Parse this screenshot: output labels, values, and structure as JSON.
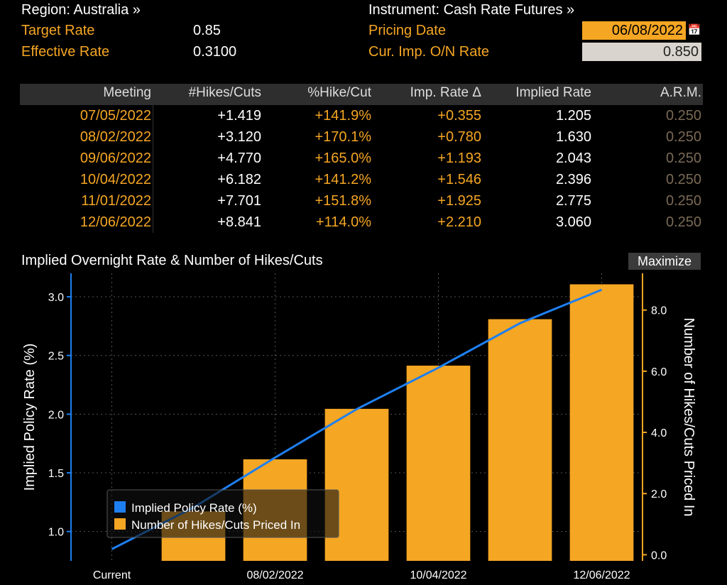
{
  "header": {
    "region": "Region: Australia »",
    "instrument": "Instrument: Cash Rate Futures »",
    "target_rate_label": "Target Rate",
    "target_rate_value": "0.85",
    "effective_rate_label": "Effective Rate",
    "effective_rate_value": "0.3100",
    "pricing_date_label": "Pricing Date",
    "pricing_date_value": "06/08/2022",
    "cur_imp_label": "Cur. Imp. O/N Rate",
    "cur_imp_value": "0.850",
    "calendar_icon": "calendar-icon"
  },
  "table": {
    "headers": [
      "Meeting",
      "#Hikes/Cuts",
      "%Hike/Cut",
      "Imp. Rate Δ",
      "Implied Rate",
      "A.R.M."
    ],
    "rows": [
      [
        "07/05/2022",
        "+1.419",
        "+141.9%",
        "+0.355",
        "1.205",
        "0.250"
      ],
      [
        "08/02/2022",
        "+3.120",
        "+170.1%",
        "+0.780",
        "1.630",
        "0.250"
      ],
      [
        "09/06/2022",
        "+4.770",
        "+165.0%",
        "+1.193",
        "2.043",
        "0.250"
      ],
      [
        "10/04/2022",
        "+6.182",
        "+141.2%",
        "+1.546",
        "2.396",
        "0.250"
      ],
      [
        "11/01/2022",
        "+7.701",
        "+151.8%",
        "+1.925",
        "2.775",
        "0.250"
      ],
      [
        "12/06/2022",
        "+8.841",
        "+114.0%",
        "+2.210",
        "3.060",
        "0.250"
      ]
    ]
  },
  "chart": {
    "title": "Implied Overnight Rate & Number of Hikes/Cuts",
    "maximize_label": "Maximize"
  },
  "colors": {
    "accent": "#f5a623",
    "line": "#1e7ff0",
    "background": "#000000"
  },
  "chart_data": {
    "type": "bar",
    "categories": [
      "Current",
      "07/05/2022",
      "08/02/2022",
      "09/06/2022",
      "10/04/2022",
      "11/01/2022",
      "12/06/2022"
    ],
    "x_tick_labels": [
      "Current",
      "08/02/2022",
      "10/04/2022",
      "12/06/2022"
    ],
    "series": [
      {
        "name": "Implied Policy Rate (%)",
        "type": "line",
        "axis": "left",
        "values": [
          0.85,
          1.205,
          1.63,
          2.043,
          2.396,
          2.775,
          3.06
        ]
      },
      {
        "name": "Number of Hikes/Cuts Priced In",
        "type": "bar",
        "axis": "right",
        "values": [
          null,
          1.419,
          3.12,
          4.77,
          6.182,
          7.701,
          8.841
        ]
      }
    ],
    "ylabel": "Implied Policy Rate (%)",
    "y2label": "Number of Hikes/Cuts Priced In",
    "ylim": [
      0.75,
      3.2
    ],
    "y2lim": [
      -0.2,
      9.2
    ],
    "yticks": [
      "1.0",
      "1.5",
      "2.0",
      "2.5",
      "3.0"
    ],
    "y2ticks": [
      "0.0",
      "2.0",
      "4.0",
      "6.0",
      "8.0"
    ],
    "legend_placement": "bottom-left",
    "grid": true
  }
}
